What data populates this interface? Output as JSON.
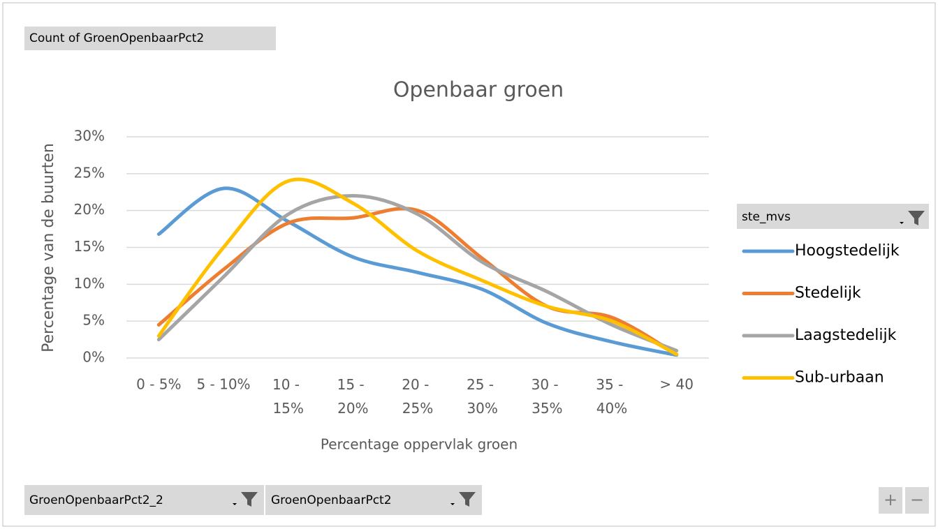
{
  "chart_data": {
    "type": "line",
    "title": "Openbaar groen",
    "x_label": "Percentage oppervlak groen",
    "y_label": "Percentage van de buurten",
    "categories": [
      "0 - 5%",
      "5 - 10%",
      "10 - 15%",
      "15 - 20%",
      "20 - 25%",
      "25 - 30%",
      "30 - 35%",
      "35 - 40%",
      "> 40"
    ],
    "series": [
      {
        "name": "Hoogstedelijk",
        "color": "#5b9bd5",
        "values": [
          16.8,
          23,
          18.5,
          13.7,
          11.6,
          9.3,
          4.7,
          2.2,
          0.4
        ]
      },
      {
        "name": "Stedelijk",
        "color": "#ed7d31",
        "values": [
          4.5,
          12,
          18.3,
          19,
          20,
          13.5,
          7,
          5.5,
          0.5
        ]
      },
      {
        "name": "Laagstedelijk",
        "color": "#a5a5a5",
        "values": [
          2.5,
          11,
          19.5,
          22,
          19.5,
          13,
          9,
          4.5,
          1
        ]
      },
      {
        "name": "Sub-urbaan",
        "color": "#ffc000",
        "values": [
          3,
          15,
          24,
          21,
          14.5,
          10.5,
          7,
          5,
          0.5
        ]
      }
    ],
    "ylim": [
      0,
      30
    ],
    "yticks": [
      {
        "value": 0,
        "label": "0%"
      },
      {
        "value": 5,
        "label": "5%"
      },
      {
        "value": 10,
        "label": "10%"
      },
      {
        "value": 15,
        "label": "15%"
      },
      {
        "value": 20,
        "label": "20%"
      },
      {
        "value": 25,
        "label": "25%"
      },
      {
        "value": 30,
        "label": "30%"
      }
    ],
    "grid": true,
    "smooth": true,
    "legend": "right"
  },
  "pivot_buttons": {
    "value_field": "Count of GroenOpenbaarPct2",
    "legend_field": "ste_mvs",
    "axis_fields": [
      "GroenOpenbaarPct2_2",
      "GroenOpenbaarPct2"
    ],
    "zoom": [
      "+",
      "−"
    ]
  }
}
